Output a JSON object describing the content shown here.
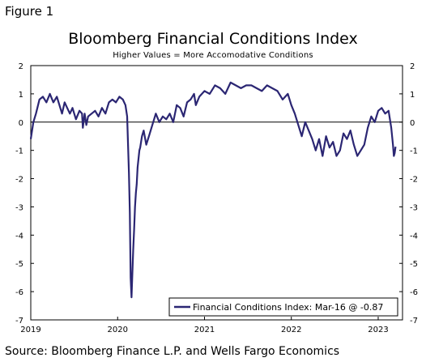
{
  "figure_label": "Figure 1",
  "source": "Source: Bloomberg Finance L.P. and Wells Fargo Economics",
  "colors": {
    "series": "#2b2673",
    "axis": "#000000"
  },
  "chart_data": {
    "type": "line",
    "title": "Bloomberg Financial Conditions Index",
    "subtitle": "Higher Values = More Accomodative Conditions",
    "xlabel": "",
    "ylabel": "",
    "ylim": [
      -7,
      2
    ],
    "xlim": [
      2019.0,
      2023.28
    ],
    "y_ticks": [
      2,
      1,
      0,
      -1,
      -2,
      -3,
      -4,
      -5,
      -6,
      -7
    ],
    "x_ticks": [
      2019,
      2020,
      2021,
      2022,
      2023
    ],
    "grid": false,
    "zero_line": true,
    "legend_position": "bottom-right",
    "series": [
      {
        "name": "Financial Conditions Index: Mar-16 @ -0.87",
        "x": [
          2019.0,
          2019.03,
          2019.06,
          2019.1,
          2019.14,
          2019.18,
          2019.22,
          2019.26,
          2019.3,
          2019.33,
          2019.36,
          2019.39,
          2019.42,
          2019.45,
          2019.48,
          2019.52,
          2019.56,
          2019.59,
          2019.6,
          2019.62,
          2019.64,
          2019.66,
          2019.7,
          2019.74,
          2019.78,
          2019.82,
          2019.86,
          2019.9,
          2019.94,
          2019.98,
          2020.02,
          2020.06,
          2020.09,
          2020.11,
          2020.12,
          2020.13,
          2020.14,
          2020.15,
          2020.16,
          2020.17,
          2020.18,
          2020.19,
          2020.2,
          2020.21,
          2020.22,
          2020.23,
          2020.24,
          2020.25,
          2020.26,
          2020.28,
          2020.3,
          2020.33,
          2020.36,
          2020.4,
          2020.44,
          2020.48,
          2020.52,
          2020.56,
          2020.6,
          2020.64,
          2020.68,
          2020.72,
          2020.76,
          2020.8,
          2020.84,
          2020.88,
          2020.9,
          2020.94,
          2021.0,
          2021.06,
          2021.12,
          2021.18,
          2021.24,
          2021.3,
          2021.36,
          2021.42,
          2021.48,
          2021.54,
          2021.6,
          2021.66,
          2021.72,
          2021.78,
          2021.84,
          2021.9,
          2021.96,
          2022.0,
          2022.04,
          2022.08,
          2022.12,
          2022.16,
          2022.2,
          2022.24,
          2022.28,
          2022.32,
          2022.36,
          2022.4,
          2022.44,
          2022.48,
          2022.52,
          2022.56,
          2022.6,
          2022.64,
          2022.68,
          2022.72,
          2022.76,
          2022.8,
          2022.84,
          2022.88,
          2022.92,
          2022.96,
          2023.0,
          2023.04,
          2023.08,
          2023.12,
          2023.15,
          2023.17,
          2023.18,
          2023.19,
          2023.2
        ],
        "y": [
          -0.6,
          0.0,
          0.3,
          0.8,
          0.9,
          0.7,
          1.0,
          0.7,
          0.9,
          0.6,
          0.3,
          0.7,
          0.5,
          0.3,
          0.5,
          0.1,
          0.4,
          0.3,
          -0.2,
          0.3,
          -0.1,
          0.2,
          0.3,
          0.4,
          0.2,
          0.5,
          0.3,
          0.7,
          0.8,
          0.7,
          0.9,
          0.8,
          0.6,
          0.2,
          -0.8,
          -1.8,
          -3.2,
          -5.5,
          -6.2,
          -5.3,
          -4.5,
          -3.8,
          -3.0,
          -2.5,
          -2.2,
          -1.6,
          -1.3,
          -1.0,
          -0.9,
          -0.5,
          -0.3,
          -0.8,
          -0.5,
          -0.1,
          0.3,
          0.0,
          0.2,
          0.1,
          0.3,
          0.0,
          0.6,
          0.5,
          0.2,
          0.7,
          0.8,
          1.0,
          0.6,
          0.9,
          1.1,
          1.0,
          1.3,
          1.2,
          1.0,
          1.4,
          1.3,
          1.2,
          1.3,
          1.3,
          1.2,
          1.1,
          1.3,
          1.2,
          1.1,
          0.8,
          1.0,
          0.6,
          0.3,
          -0.1,
          -0.5,
          0.0,
          -0.3,
          -0.6,
          -1.0,
          -0.6,
          -1.2,
          -0.5,
          -0.9,
          -0.7,
          -1.2,
          -1.0,
          -0.4,
          -0.6,
          -0.3,
          -0.8,
          -1.2,
          -1.0,
          -0.8,
          -0.2,
          0.2,
          0.0,
          0.4,
          0.5,
          0.3,
          0.4,
          -0.2,
          -0.8,
          -1.2,
          -1.1,
          -0.87
        ]
      }
    ]
  }
}
